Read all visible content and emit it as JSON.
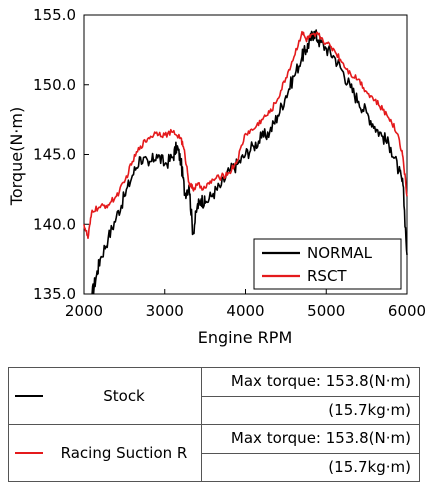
{
  "chart_data": {
    "type": "line",
    "xlabel": "Engine RPM",
    "ylabel": "Torque(N·m)",
    "xlim": [
      2000,
      6000
    ],
    "ylim": [
      135.0,
      155.0
    ],
    "xticks": [
      "2000",
      "3000",
      "4000",
      "5000",
      "6000"
    ],
    "yticks": [
      "135.0",
      "140.0",
      "145.0",
      "150.0",
      "155.0"
    ],
    "legend_position": "bottom-right",
    "series": [
      {
        "name": "NORMAL",
        "color": "#000000",
        "points": [
          [
            2100,
            135.0
          ],
          [
            2150,
            136.2
          ],
          [
            2200,
            137.5
          ],
          [
            2300,
            139.0
          ],
          [
            2400,
            140.5
          ],
          [
            2500,
            142.0
          ],
          [
            2600,
            143.5
          ],
          [
            2700,
            144.8
          ],
          [
            2800,
            144.2
          ],
          [
            2900,
            145.0
          ],
          [
            3000,
            144.3
          ],
          [
            3100,
            144.8
          ],
          [
            3150,
            145.6
          ],
          [
            3200,
            144.5
          ],
          [
            3250,
            142.2
          ],
          [
            3300,
            142.8
          ],
          [
            3350,
            139.3
          ],
          [
            3400,
            141.2
          ],
          [
            3450,
            141.8
          ],
          [
            3500,
            141.5
          ],
          [
            3600,
            142.2
          ],
          [
            3700,
            142.8
          ],
          [
            3800,
            143.8
          ],
          [
            3900,
            144.3
          ],
          [
            4000,
            145.0
          ],
          [
            4100,
            145.6
          ],
          [
            4200,
            146.2
          ],
          [
            4300,
            146.6
          ],
          [
            4400,
            147.8
          ],
          [
            4500,
            149.2
          ],
          [
            4600,
            150.6
          ],
          [
            4700,
            152.0
          ],
          [
            4750,
            152.5
          ],
          [
            4800,
            153.2
          ],
          [
            4850,
            153.8
          ],
          [
            4900,
            153.2
          ],
          [
            5000,
            152.6
          ],
          [
            5100,
            152.0
          ],
          [
            5200,
            151.0
          ],
          [
            5300,
            149.8
          ],
          [
            5400,
            148.8
          ],
          [
            5500,
            148.0
          ],
          [
            5600,
            147.0
          ],
          [
            5700,
            146.3
          ],
          [
            5800,
            145.5
          ],
          [
            5900,
            143.8
          ],
          [
            5950,
            142.8
          ],
          [
            6000,
            137.8
          ]
        ]
      },
      {
        "name": "RSCT",
        "color": "#e41a1c",
        "points": [
          [
            2000,
            140.0
          ],
          [
            2050,
            139.0
          ],
          [
            2100,
            141.0
          ],
          [
            2200,
            141.2
          ],
          [
            2300,
            141.4
          ],
          [
            2400,
            142.0
          ],
          [
            2500,
            143.0
          ],
          [
            2600,
            144.5
          ],
          [
            2700,
            145.6
          ],
          [
            2800,
            146.2
          ],
          [
            2900,
            146.6
          ],
          [
            3000,
            146.4
          ],
          [
            3100,
            146.6
          ],
          [
            3200,
            146.2
          ],
          [
            3250,
            145.0
          ],
          [
            3300,
            143.0
          ],
          [
            3350,
            142.5
          ],
          [
            3400,
            142.8
          ],
          [
            3500,
            142.6
          ],
          [
            3600,
            143.2
          ],
          [
            3700,
            143.4
          ],
          [
            3800,
            143.7
          ],
          [
            3900,
            144.6
          ],
          [
            4000,
            146.5
          ],
          [
            4100,
            146.8
          ],
          [
            4200,
            147.5
          ],
          [
            4300,
            148.0
          ],
          [
            4400,
            149.0
          ],
          [
            4500,
            150.5
          ],
          [
            4600,
            152.0
          ],
          [
            4700,
            153.8
          ],
          [
            4750,
            153.2
          ],
          [
            4800,
            153.4
          ],
          [
            4900,
            153.6
          ],
          [
            5000,
            153.0
          ],
          [
            5100,
            152.5
          ],
          [
            5200,
            151.6
          ],
          [
            5300,
            150.8
          ],
          [
            5400,
            150.4
          ],
          [
            5500,
            149.5
          ],
          [
            5600,
            148.9
          ],
          [
            5700,
            148.2
          ],
          [
            5800,
            147.5
          ],
          [
            5900,
            146.2
          ],
          [
            5950,
            144.8
          ],
          [
            6000,
            142.0
          ]
        ]
      }
    ]
  },
  "table": {
    "rows": [
      {
        "name": "Stock",
        "color": "#000000",
        "max_torque": "Max torque: 153.8(N·m)",
        "kgm": "(15.7kg·m)"
      },
      {
        "name": "Racing Suction R",
        "color": "#e41a1c",
        "max_torque": "Max torque: 153.8(N·m)",
        "kgm": "(15.7kg·m)"
      }
    ]
  }
}
